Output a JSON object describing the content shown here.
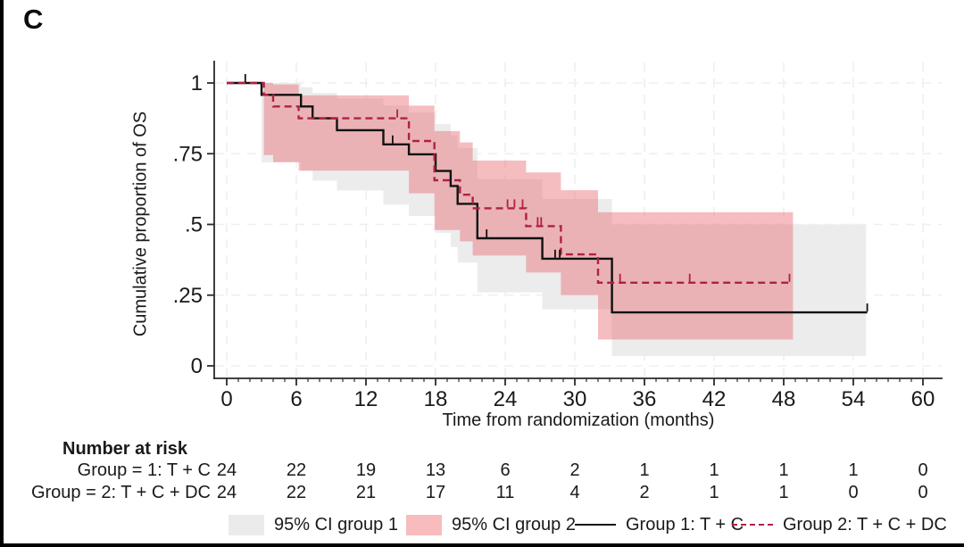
{
  "panel_label": "C",
  "colors": {
    "group1_line": "#111111",
    "group2_line": "#b02045",
    "ci_group1_fill": "#ececec",
    "ci_group2_fill": "rgba(231,98,105,0.42)",
    "grid": "#efefef",
    "axis": "#2a2a2a",
    "text": "#1a1a1a",
    "legend_ci1_swatch": "#ebebeb",
    "legend_ci2_swatch": "#f8bcbe"
  },
  "chart_data": {
    "type": "line",
    "subtype": "kaplan-meier-step",
    "title": "",
    "xlabel": "Time from randomization (months)",
    "ylabel": "Cumulative proportion of OS",
    "xlim": [
      0,
      60
    ],
    "ylim": [
      0,
      1
    ],
    "xticks": [
      0,
      6,
      12,
      18,
      24,
      30,
      36,
      42,
      48,
      54,
      60
    ],
    "minor_xtick_every": 1,
    "yticks": [
      0,
      0.25,
      0.5,
      0.75,
      1
    ],
    "ytick_labels": [
      "0",
      ".25",
      ".5",
      ".75",
      "1"
    ],
    "grid": true,
    "legend_position": "bottom",
    "series": [
      {
        "name": "Group 1: T + C",
        "style": "solid",
        "steps": [
          [
            0,
            1
          ],
          [
            3,
            0.958
          ],
          [
            6.4,
            0.917
          ],
          [
            7.4,
            0.875
          ],
          [
            9.5,
            0.833
          ],
          [
            13.5,
            0.783
          ],
          [
            15.7,
            0.748
          ],
          [
            18,
            0.689
          ],
          [
            19.3,
            0.636
          ],
          [
            19.9,
            0.573
          ],
          [
            21.6,
            0.451
          ],
          [
            27.2,
            0.379
          ],
          [
            33.2,
            0.189
          ]
        ],
        "end_x": 55.2,
        "censors": [
          [
            1.6,
            1
          ],
          [
            14.3,
            0.783
          ],
          [
            22.4,
            0.451
          ],
          [
            28.3,
            0.379
          ],
          [
            28.7,
            0.379
          ],
          [
            55.2,
            0.189
          ]
        ]
      },
      {
        "name": "Group 2: T + C + DC",
        "style": "dashed",
        "steps": [
          [
            0,
            1
          ],
          [
            3.2,
            0.958
          ],
          [
            4.0,
            0.917
          ],
          [
            6.2,
            0.875
          ],
          [
            15.7,
            0.795
          ],
          [
            17.9,
            0.656
          ],
          [
            20.1,
            0.605
          ],
          [
            21.2,
            0.557
          ],
          [
            25.8,
            0.494
          ],
          [
            28.8,
            0.394
          ],
          [
            32.0,
            0.294
          ]
        ],
        "end_x": 48.5,
        "censors": [
          [
            14.7,
            0.875
          ],
          [
            24.2,
            0.557
          ],
          [
            24.8,
            0.557
          ],
          [
            25.5,
            0.557
          ],
          [
            26.8,
            0.494
          ],
          [
            27.1,
            0.494
          ],
          [
            33.9,
            0.294
          ],
          [
            39.9,
            0.294
          ],
          [
            48.5,
            0.294
          ]
        ]
      }
    ],
    "ci_bands": [
      {
        "name": "95% CI group 1",
        "x": [
          3,
          6.4,
          7.4,
          9.5,
          13.5,
          15.7,
          18,
          19.3,
          19.9,
          21.6,
          27.2,
          33.2
        ],
        "upper": [
          1.0,
          0.985,
          0.965,
          0.945,
          0.92,
          0.895,
          0.855,
          0.815,
          0.77,
          0.66,
          0.59,
          0.5
        ],
        "lower": [
          0.72,
          0.69,
          0.655,
          0.62,
          0.57,
          0.53,
          0.47,
          0.42,
          0.365,
          0.26,
          0.2,
          0.035
        ],
        "end_x": 55.1
      },
      {
        "name": "95% CI group 2",
        "x": [
          3.2,
          4.0,
          6.2,
          15.7,
          17.9,
          20.1,
          21.2,
          25.8,
          28.8,
          32.0
        ],
        "upper": [
          1.0,
          0.995,
          0.956,
          0.92,
          0.83,
          0.79,
          0.726,
          0.684,
          0.621,
          0.543
        ],
        "lower": [
          0.745,
          0.72,
          0.69,
          0.61,
          0.48,
          0.44,
          0.39,
          0.33,
          0.25,
          0.093
        ],
        "end_x": 48.8
      }
    ]
  },
  "risk_table": {
    "title": "Number at risk",
    "times": [
      0,
      6,
      12,
      18,
      24,
      30,
      36,
      42,
      48,
      54,
      60
    ],
    "rows": [
      {
        "label": "Group = 1: T + C",
        "values": [
          24,
          22,
          19,
          13,
          6,
          2,
          1,
          1,
          1,
          1,
          0
        ]
      },
      {
        "label": "Group = 2: T + C + DC",
        "values": [
          24,
          22,
          21,
          17,
          11,
          4,
          2,
          1,
          1,
          0,
          0
        ]
      }
    ]
  },
  "legend": {
    "items": [
      {
        "label": "95% CI group 1",
        "swatch": "box-gray"
      },
      {
        "label": "95% CI group 2",
        "swatch": "box-pink"
      },
      {
        "label": "Group 1: T + C",
        "swatch": "solid-line"
      },
      {
        "label": "Group 2: T + C + DC",
        "swatch": "dashed-line"
      }
    ]
  }
}
